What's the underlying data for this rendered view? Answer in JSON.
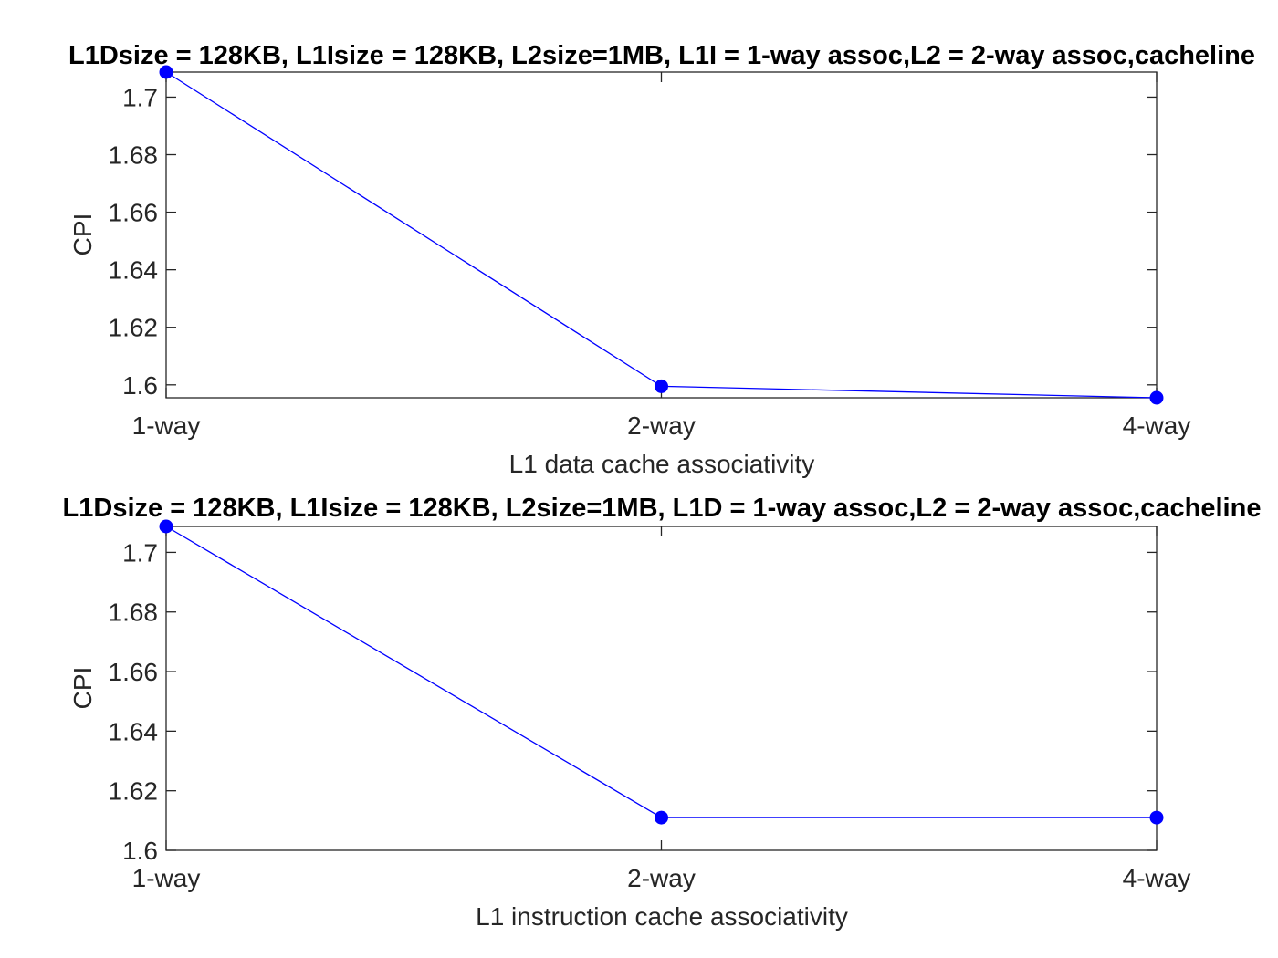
{
  "chart_data": [
    {
      "type": "line",
      "title": "L1Dsize = 128KB, L1Isize = 128KB, L2size=1MB, L1I = 1-way assoc,L2 = 2-way assoc,cacheline",
      "xlabel": "L1 data cache associativity",
      "ylabel": "CPI",
      "categories": [
        "1-way",
        "2-way",
        "4-way"
      ],
      "series": [
        {
          "values": [
            1.7087,
            1.5995,
            1.5955
          ]
        }
      ],
      "ylim": [
        1.5955,
        1.7087
      ],
      "yticks": [
        1.6,
        1.62,
        1.64,
        1.66,
        1.68,
        1.7
      ],
      "ytick_labels": [
        "1.6",
        "1.62",
        "1.64",
        "1.66",
        "1.68",
        "1.7"
      ],
      "color": "#0000ff",
      "grid": false
    },
    {
      "type": "line",
      "title": "L1Dsize = 128KB, L1Isize = 128KB, L2size=1MB, L1D = 1-way assoc,L2 = 2-way assoc,cacheline",
      "xlabel": "L1 instruction cache associativity",
      "ylabel": "CPI",
      "categories": [
        "1-way",
        "2-way",
        "4-way"
      ],
      "series": [
        {
          "values": [
            1.7087,
            1.611,
            1.611
          ]
        }
      ],
      "ylim": [
        1.6,
        1.7087
      ],
      "yticks": [
        1.6,
        1.62,
        1.64,
        1.66,
        1.68,
        1.7
      ],
      "ytick_labels": [
        "1.6",
        "1.62",
        "1.64",
        "1.66",
        "1.68",
        "1.7"
      ],
      "color": "#0000ff",
      "grid": false
    }
  ]
}
